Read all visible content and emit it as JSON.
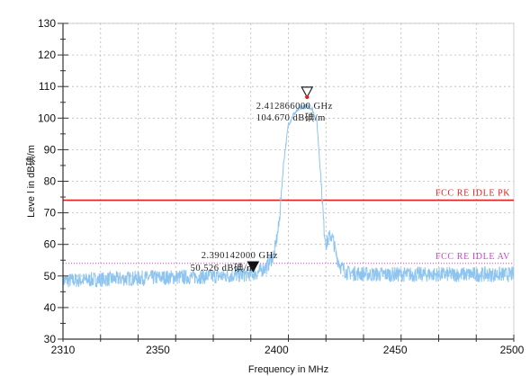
{
  "chart_data": {
    "type": "line",
    "xlabel": "Frequency in MHz",
    "ylabel": "Leve l in dB碘/m",
    "xlim": [
      2310,
      2500
    ],
    "ylim": [
      30,
      130
    ],
    "x_ticks": [
      {
        "value": 2310,
        "label": "2310"
      },
      {
        "value": 2350,
        "label": "2350"
      },
      {
        "value": 2400,
        "label": "2400"
      },
      {
        "value": 2450,
        "label": "2450"
      },
      {
        "value": 2500,
        "label": "2500"
      }
    ],
    "y_ticks": [
      {
        "value": 30,
        "label": "30"
      },
      {
        "value": 40,
        "label": "40"
      },
      {
        "value": 50,
        "label": "50"
      },
      {
        "value": 60,
        "label": "60"
      },
      {
        "value": 70,
        "label": "70"
      },
      {
        "value": 80,
        "label": "80"
      },
      {
        "value": 90,
        "label": "90"
      },
      {
        "value": 100,
        "label": "100"
      },
      {
        "value": 110,
        "label": "110"
      },
      {
        "value": 120,
        "label": "120"
      },
      {
        "value": 130,
        "label": "130"
      }
    ],
    "grid": true,
    "series": [
      {
        "color": "#8ec5f0",
        "x": [
          2310,
          2330,
          2350,
          2370,
          2385,
          2392,
          2396,
          2399,
          2401,
          2403,
          2405,
          2407,
          2409,
          2411,
          2413,
          2415,
          2417,
          2419,
          2420,
          2421,
          2422,
          2423,
          2424,
          2425,
          2427,
          2430,
          2440,
          2460,
          2480,
          2500
        ],
        "values": [
          48.5,
          49,
          49.5,
          49.8,
          50.3,
          51,
          53,
          57,
          66,
          86,
          98,
          101,
          102.5,
          103.5,
          103.8,
          103,
          99,
          78,
          65,
          60,
          62,
          63,
          61,
          57,
          53,
          51,
          50.5,
          50.5,
          50.5,
          50.5
        ]
      }
    ],
    "limits": [
      {
        "label": "FCC RE IDLE PK",
        "value": 74,
        "color": "#e02020",
        "style": "solid"
      },
      {
        "label": "FCC RE IDLE AV",
        "value": 54,
        "color": "#d040d0",
        "style": "dotted"
      }
    ],
    "markers": [
      {
        "x": 2412.866,
        "y": 104.67,
        "symbol": "open-triangle-down",
        "text_line1": "2.412866000 GHz",
        "text_line2": "104.670 dB碘/m"
      },
      {
        "x": 2390.142,
        "y": 50.526,
        "symbol": "filled-triangle-down",
        "text_line1": "2.390142000 GHz",
        "text_line2": "50.526 dB碘/m"
      }
    ]
  },
  "colors": {
    "trace": "#8ec5f0",
    "grid": "#b8b8b8",
    "axis": "#333333",
    "marker_peak_dot": "#e02020"
  }
}
